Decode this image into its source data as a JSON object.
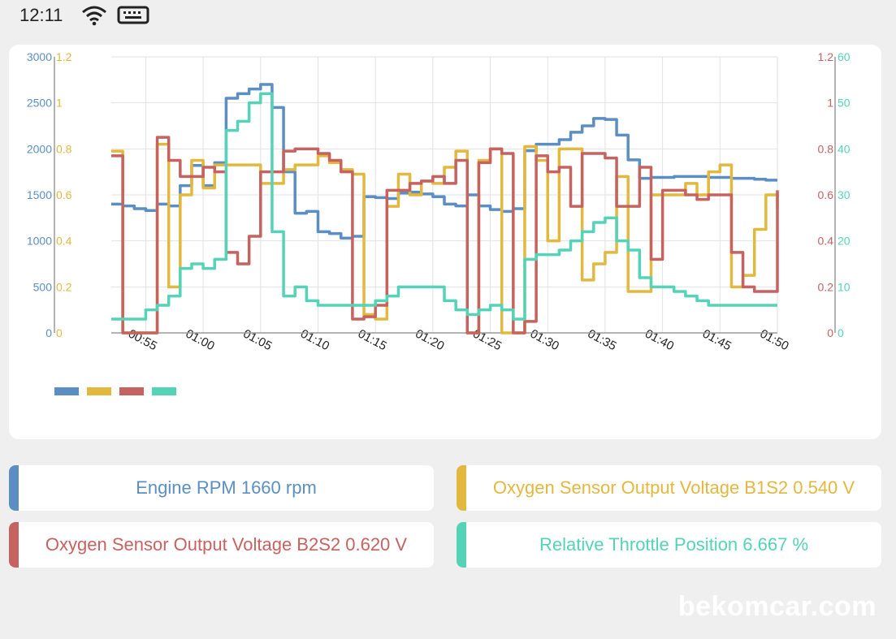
{
  "status_bar": {
    "time": "12:11",
    "icons": [
      "wifi-icon",
      "keyboard-icon"
    ]
  },
  "colors": {
    "rpm": "#5b8fc4",
    "b1s2": "#e3b83f",
    "b2s2": "#c6625f",
    "throttle": "#55d3b6",
    "grid": "#e2e2e2"
  },
  "chart_data": {
    "type": "line",
    "x": [
      "00:52",
      "00:53",
      "00:54",
      "00:55",
      "00:56",
      "00:57",
      "00:58",
      "00:59",
      "01:00",
      "01:01",
      "01:02",
      "01:03",
      "01:04",
      "01:05",
      "01:06",
      "01:07",
      "01:08",
      "01:09",
      "01:10",
      "01:11",
      "01:12",
      "01:13",
      "01:14",
      "01:15",
      "01:16",
      "01:17",
      "01:18",
      "01:19",
      "01:20",
      "01:21",
      "01:22",
      "01:23",
      "01:24",
      "01:25",
      "01:26",
      "01:27",
      "01:28",
      "01:29",
      "01:30",
      "01:31",
      "01:32",
      "01:33",
      "01:34",
      "01:35",
      "01:36",
      "01:37",
      "01:38",
      "01:39",
      "01:40",
      "01:41",
      "01:42",
      "01:43",
      "01:44",
      "01:45",
      "01:46",
      "01:47",
      "01:48",
      "01:49",
      "01:50"
    ],
    "x_ticks": [
      "00:55",
      "01:00",
      "01:05",
      "01:10",
      "01:15",
      "01:20",
      "01:25",
      "01:30",
      "01:35",
      "01:40",
      "01:45",
      "01:50"
    ],
    "grid": true,
    "series": [
      {
        "key": "rpm",
        "axis": "left_outer",
        "ylim": [
          0,
          3000
        ],
        "values": [
          1400,
          1380,
          1350,
          1330,
          1400,
          1380,
          1600,
          1820,
          1600,
          1850,
          2550,
          2600,
          2650,
          2700,
          2450,
          1750,
          1300,
          1320,
          1100,
          1080,
          1030,
          1050,
          1480,
          1470,
          1460,
          1520,
          1530,
          1510,
          1480,
          1400,
          1380,
          1500,
          1380,
          1340,
          1320,
          1350,
          1980,
          2050,
          2050,
          2100,
          2180,
          2250,
          2330,
          2320,
          2150,
          1880,
          1680,
          1690,
          1690,
          1700,
          1700,
          1700,
          1690,
          1690,
          1680,
          1680,
          1670,
          1660,
          1660
        ]
      },
      {
        "key": "b1s2",
        "axis": "left_inner",
        "ylim": [
          0,
          1.2
        ],
        "values": [
          0.79,
          0.0,
          0.0,
          0.0,
          0.82,
          0.2,
          0.6,
          0.75,
          0.63,
          0.73,
          0.73,
          0.73,
          0.73,
          0.65,
          0.65,
          0.71,
          0.73,
          0.73,
          0.77,
          0.74,
          0.71,
          0.69,
          0.08,
          0.06,
          0.55,
          0.69,
          0.6,
          0.66,
          0.65,
          0.72,
          0.79,
          0.0,
          0.75,
          0.8,
          0.0,
          0.0,
          0.81,
          0.75,
          0.4,
          0.8,
          0.8,
          0.23,
          0.3,
          0.35,
          0.68,
          0.18,
          0.18,
          0.6,
          0.6,
          0.6,
          0.65,
          0.6,
          0.7,
          0.73,
          0.2,
          0.25,
          0.45,
          0.6,
          0.54
        ]
      },
      {
        "key": "b2s2",
        "axis": "right_inner",
        "ylim": [
          0,
          1.2
        ],
        "values": [
          0.77,
          0.0,
          0.0,
          0.0,
          0.85,
          0.75,
          0.68,
          0.68,
          0.72,
          0.7,
          0.35,
          0.3,
          0.42,
          0.7,
          0.7,
          0.79,
          0.8,
          0.8,
          0.78,
          0.75,
          0.7,
          0.06,
          0.07,
          0.12,
          0.62,
          0.62,
          0.65,
          0.66,
          0.68,
          0.65,
          0.75,
          0.0,
          0.74,
          0.8,
          0.78,
          0.0,
          0.05,
          0.77,
          0.7,
          0.72,
          0.55,
          0.78,
          0.78,
          0.76,
          0.55,
          0.55,
          0.72,
          0.32,
          0.62,
          0.62,
          0.6,
          0.58,
          0.6,
          0.6,
          0.35,
          0.2,
          0.18,
          0.18,
          0.62
        ]
      },
      {
        "key": "throttle",
        "axis": "right_outer",
        "ylim": [
          0,
          60
        ],
        "values": [
          3,
          3,
          3,
          5,
          6,
          8,
          14,
          15,
          14,
          16,
          44,
          46,
          50,
          52,
          22,
          8,
          10,
          7,
          6,
          6,
          6,
          6,
          6,
          7,
          8,
          10,
          10,
          10,
          10,
          7,
          5,
          4,
          5,
          6,
          5,
          3,
          16,
          17,
          17,
          18,
          20,
          22,
          24,
          25,
          20,
          18,
          12,
          10,
          10,
          9,
          8,
          7,
          6,
          6,
          6,
          6,
          6,
          6,
          6
        ]
      }
    ],
    "axes": {
      "left_outer": {
        "ticks": [
          "0",
          "500",
          "1000",
          "1500",
          "2000",
          "2500",
          "3000"
        ],
        "color": "#5b8fc4"
      },
      "left_inner": {
        "ticks": [
          "0",
          "0.2",
          "0.4",
          "0.6",
          "0.8",
          "1",
          "1.2"
        ],
        "color": "#e3b83f"
      },
      "right_inner": {
        "ticks": [
          "0",
          "0.2",
          "0.4",
          "0.6",
          "0.8",
          "1",
          "1.2"
        ],
        "color": "#c6625f"
      },
      "right_outer": {
        "ticks": [
          "0",
          "10",
          "20",
          "30",
          "40",
          "50",
          "60"
        ],
        "color": "#55d3b6"
      }
    }
  },
  "value_cards": [
    {
      "label": "Engine RPM 1660 rpm",
      "color": "#5b8fc4"
    },
    {
      "label": "Oxygen Sensor Output Voltage B1S2 0.540 V",
      "color": "#e3b83f"
    },
    {
      "label": "Oxygen Sensor Output Voltage B2S2 0.620 V",
      "color": "#c6625f"
    },
    {
      "label": "Relative Throttle Position 6.667 %",
      "color": "#55d3b6"
    }
  ],
  "watermark": "bekomcar.com"
}
